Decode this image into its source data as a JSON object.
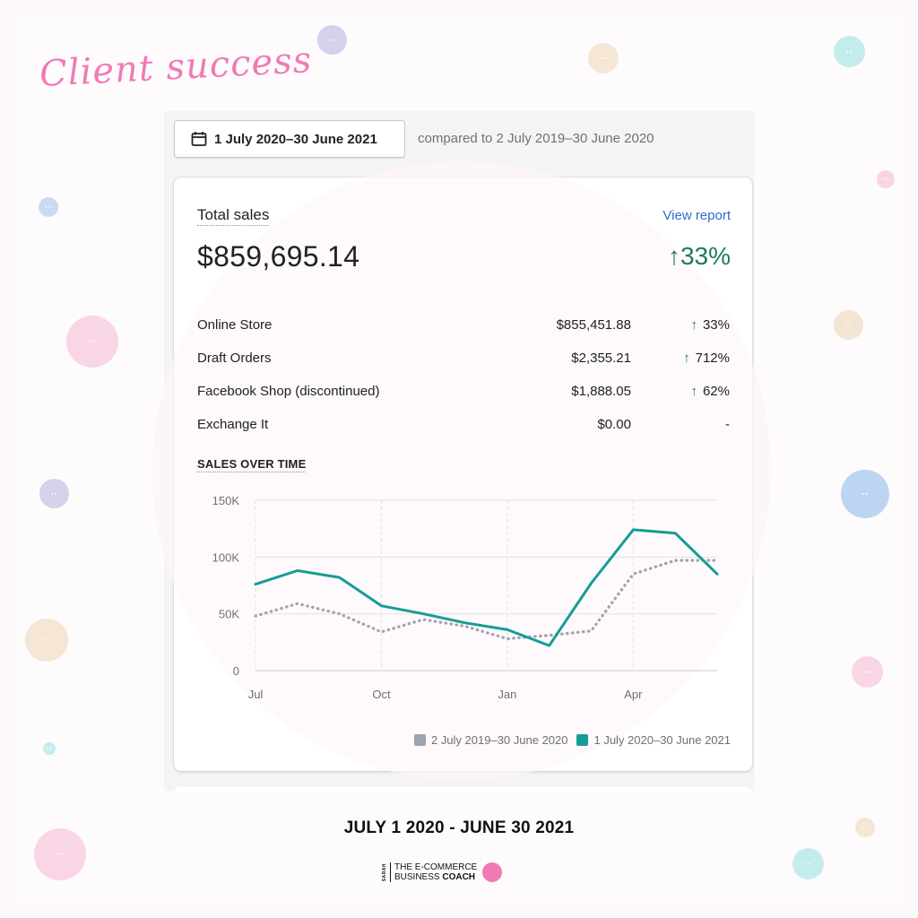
{
  "header": {
    "script_title": "Client success"
  },
  "toolbar": {
    "date_range_label": "1 July 2020–30 June 2021",
    "compare_text": "compared to 2 July 2019–30 June 2020"
  },
  "card": {
    "total_label": "Total sales",
    "view_report": "View report",
    "total_value": "$859,695.14",
    "total_change_arrow": "↑",
    "total_change": "33%",
    "rows": [
      {
        "name": "Online Store",
        "amount": "$855,451.88",
        "arrow": "↑",
        "change": "33%"
      },
      {
        "name": "Draft Orders",
        "amount": "$2,355.21",
        "arrow": "↑",
        "change": "712%"
      },
      {
        "name": "Facebook Shop (discontinued)",
        "amount": "$1,888.05",
        "arrow": "↑",
        "change": "62%"
      },
      {
        "name": "Exchange It",
        "amount": "$0.00",
        "arrow": "",
        "change": "-"
      }
    ],
    "sales_over_time_label": "SALES OVER TIME"
  },
  "chart_data": {
    "type": "line",
    "x_tick_labels": [
      "Jul",
      "Oct",
      "Jan",
      "Apr"
    ],
    "x_tick_positions": [
      0,
      3,
      6,
      9
    ],
    "y_tick_labels": [
      "0",
      "50K",
      "100K",
      "150K"
    ],
    "y_tick_values": [
      0,
      50000,
      100000,
      150000
    ],
    "ylim": [
      0,
      150000
    ],
    "xlim": [
      0,
      11
    ],
    "grid": true,
    "legend_position": "bottom-right",
    "series": [
      {
        "name": "2 July 2019–30 June 2020",
        "color": "#9ea3ad",
        "style": "dotted",
        "x": [
          0,
          1,
          2,
          3,
          4,
          5,
          6,
          7,
          8,
          9,
          10,
          11
        ],
        "values": [
          48000,
          59000,
          50000,
          34000,
          45000,
          39000,
          28000,
          31000,
          35000,
          85000,
          97000,
          97000
        ]
      },
      {
        "name": "1 July 2020–30 June 2021",
        "color": "#159d95",
        "style": "solid",
        "x": [
          0,
          1,
          2,
          3,
          4,
          5,
          6,
          7,
          8,
          9,
          10,
          11
        ],
        "values": [
          76000,
          88000,
          82000,
          57000,
          50000,
          42000,
          36000,
          22000,
          77000,
          124000,
          121000,
          85000
        ]
      }
    ]
  },
  "footer": {
    "date_range": "JULY 1 2020 - JUNE 30 2021",
    "logo_tiny": "SARAH",
    "logo_line1": "THE E-COMMERCE",
    "logo_line2a": "BUSINESS ",
    "logo_line2b": "COACH"
  },
  "colors": {
    "accent_pink": "#f07ab6",
    "positive_green": "#1f7a5c",
    "link_blue": "#2c6ecb",
    "teal": "#159d95",
    "gray_series": "#9ea3ad"
  }
}
